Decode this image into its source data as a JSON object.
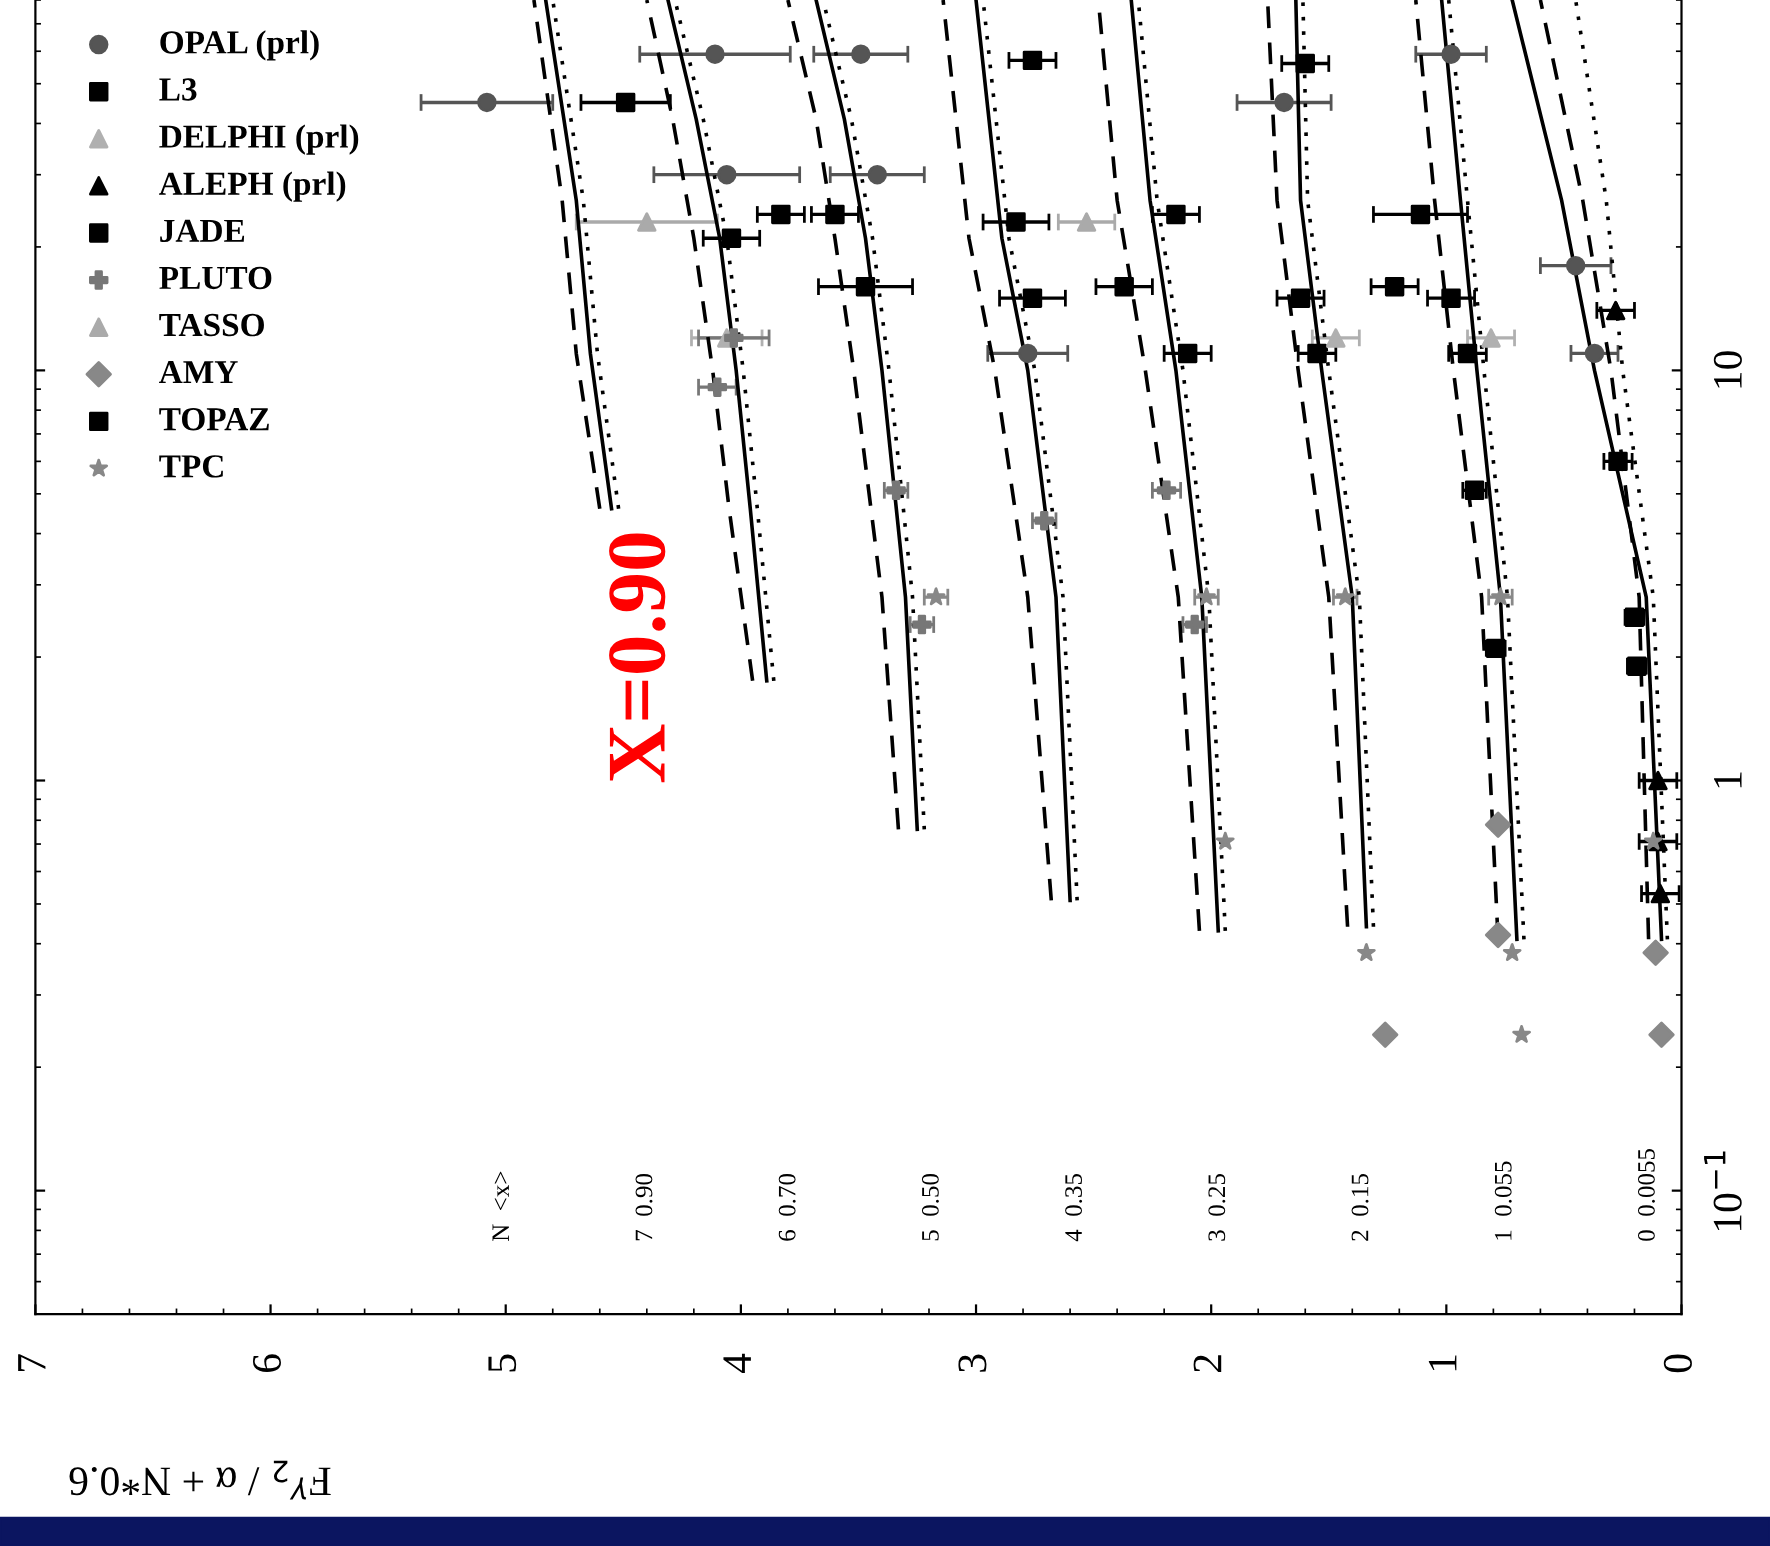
{
  "chart_data": {
    "type": "scatter",
    "xlabel": "F$^{γ}$$_{2}$ / α + N*0.6",
    "xlim": [
      7,
      0
    ],
    "xticks": [
      0,
      1,
      2,
      3,
      4,
      5,
      6,
      7
    ],
    "log": "y",
    "ylim": [
      0.05,
      80
    ],
    "yticks": [
      {
        "value": 0.1,
        "label": "10$^{−1}$"
      },
      {
        "value": 1,
        "label": "1"
      },
      {
        "value": 10,
        "label": "10"
      }
    ],
    "grid": false,
    "legend": "top left",
    "annotations": [
      "X=0.90",
      "N  <x>",
      "7  0.90",
      "6  0.70",
      "5  0.50",
      "4  0.35",
      "3  0.25",
      "2  0.15",
      "1  0.055",
      "0  0.0055"
    ],
    "series": [
      {
        "name": "OPAL (prl)",
        "color": "#555555",
        "marker": "circle",
        "x": [
          5.08,
          4.11,
          4.06,
          3.49,
          3.42,
          2.78,
          1.69,
          0.98,
          0.45,
          0.37
        ],
        "values": [
          45,
          59,
          30,
          59,
          30,
          11,
          45,
          59,
          18,
          11
        ],
        "xerrors": [
          0.28,
          0.32,
          0.31,
          0.2,
          0.2,
          0.17,
          0.2,
          0.15,
          0.15,
          0.1
        ]
      },
      {
        "name": "L3",
        "color": "#000000",
        "marker": "square",
        "x": [
          2.83,
          2.76,
          2.1,
          1.62,
          1.55,
          0.98,
          0.91,
          2.76,
          1.6
        ],
        "values": [
          23,
          15,
          11,
          15,
          11,
          15,
          11,
          57,
          56
        ],
        "xerrors": [
          0.14,
          0.14,
          0.1,
          0.1,
          0.08,
          0.1,
          0.08,
          0.1,
          0.1
        ]
      },
      {
        "name": "DELPHI (prl)",
        "color": "#b0b0b0",
        "marker": "triangle",
        "x": [
          4.06,
          1.47,
          0.81
        ],
        "values": [
          12,
          12,
          12
        ],
        "xerrors": [
          0.15,
          0.1,
          0.1
        ]
      },
      {
        "name": "ALEPH (prl)",
        "color": "#000000",
        "marker": "triangle",
        "x": [
          0.28,
          0.1,
          0.1,
          0.09
        ],
        "values": [
          14,
          1.0,
          0.71,
          0.53
        ],
        "xerrors": [
          0.08,
          0.08,
          0.08,
          0.08
        ]
      },
      {
        "name": "JADE",
        "color": "#000000",
        "marker": "square",
        "x": [
          3.83,
          3.6,
          2.15,
          1.11
        ],
        "values": [
          24,
          24,
          24,
          24
        ],
        "xerrors": [
          0.1,
          0.1,
          0.1,
          0.2
        ]
      },
      {
        "name": "PLUTO",
        "color": "#777777",
        "marker": "cross",
        "x": [
          4.1,
          4.03,
          3.34,
          3.23,
          2.71,
          2.19,
          2.07
        ],
        "values": [
          9.1,
          12,
          5.1,
          2.4,
          4.3,
          5.1,
          2.4
        ],
        "xerrors": [
          0.08,
          0.15,
          0.05,
          0.05,
          0.05,
          0.06,
          0.05
        ]
      },
      {
        "name": "TASSO",
        "color": "#aaaaaa",
        "marker": "triangle",
        "x": [
          4.4,
          2.53
        ],
        "values": [
          23,
          23
        ],
        "xerrors": [
          0.3,
          0.12
        ]
      },
      {
        "name": "AMY",
        "color": "#888888",
        "marker": "diamond",
        "x": [
          1.26,
          0.78,
          0.085,
          0.11,
          0.78
        ],
        "values": [
          0.24,
          0.42,
          0.24,
          0.38,
          0.78
        ]
      },
      {
        "name": "TOPAZ",
        "color": "#000000",
        "marker": "square",
        "x": [
          4.49,
          4.04,
          3.47,
          2.37,
          1.22,
          0.27,
          0.2,
          0.19,
          0.79,
          0.88
        ],
        "values": [
          45,
          21,
          16,
          16,
          16,
          6.0,
          2.5,
          1.9,
          2.1,
          5.1
        ],
        "xerrors": [
          0.19,
          0.12,
          0.2,
          0.12,
          0.1,
          0.06,
          0.04,
          0.04,
          0.04,
          0.05
        ]
      },
      {
        "name": "TPC",
        "color": "#888888",
        "marker": "star",
        "x": [
          3.17,
          2.02,
          1.43,
          0.77,
          0.68,
          1.34,
          0.72,
          1.94,
          0.12
        ],
        "values": [
          2.8,
          2.8,
          2.8,
          2.8,
          0.24,
          0.38,
          0.38,
          0.71,
          0.71
        ],
        "xerrors": [
          0.05,
          0.05,
          0.05,
          0.05,
          null,
          null,
          null,
          null,
          null
        ]
      },
      {
        "type": "line",
        "color": "#000000",
        "line_style": "solid",
        "x": [
          4.55,
          4.64,
          4.7,
          4.83
        ],
        "values": [
          4.6,
          11,
          26,
          80
        ]
      },
      {
        "type": "line",
        "color": "#000000",
        "line_style": "solid",
        "x": [
          3.89,
          3.96,
          4.02,
          4.09,
          4.19,
          4.31
        ],
        "values": [
          1.75,
          4.6,
          10,
          21,
          41,
          80
        ]
      },
      {
        "type": "line",
        "color": "#000000",
        "line_style": "solid",
        "x": [
          3.25,
          3.3,
          3.4,
          3.47,
          3.56,
          3.68
        ],
        "values": [
          0.76,
          2.8,
          10,
          21,
          41,
          80
        ]
      },
      {
        "type": "line",
        "color": "#000000",
        "line_style": "solid",
        "x": [
          2.6,
          2.66,
          2.78,
          2.89,
          3.0
        ],
        "values": [
          0.51,
          2.8,
          10,
          21,
          80
        ]
      },
      {
        "type": "line",
        "color": "#000000",
        "line_style": "solid",
        "x": [
          1.97,
          2.04,
          2.15,
          2.26,
          2.34
        ],
        "values": [
          0.43,
          2.8,
          10,
          26,
          80
        ]
      },
      {
        "type": "line",
        "color": "#000000",
        "line_style": "solid",
        "x": [
          1.34,
          1.4,
          1.53,
          1.62,
          1.64
        ],
        "values": [
          0.44,
          2.8,
          10,
          26,
          80
        ]
      },
      {
        "type": "line",
        "color": "#000000",
        "line_style": "solid",
        "x": [
          0.7,
          0.77,
          0.87,
          0.94,
          1.02
        ],
        "values": [
          0.41,
          2.8,
          10,
          26,
          80
        ]
      },
      {
        "type": "line",
        "color": "#000000",
        "line_style": "solid",
        "x": [
          0.085,
          0.15,
          0.37,
          0.51,
          0.72
        ],
        "values": [
          0.41,
          2.8,
          10,
          26,
          80
        ]
      },
      {
        "type": "line",
        "color": "#000000",
        "line_style": "dashed",
        "x": [
          4.6,
          4.7,
          4.76,
          4.88
        ],
        "values": [
          4.6,
          11,
          26,
          80
        ]
      },
      {
        "type": "line",
        "color": "#000000",
        "line_style": "dashed",
        "x": [
          3.95,
          4.05,
          4.12,
          4.2,
          4.29,
          4.4
        ],
        "values": [
          1.75,
          4.6,
          10,
          21,
          41,
          80
        ]
      },
      {
        "type": "line",
        "color": "#000000",
        "line_style": "dashed",
        "x": [
          3.33,
          3.4,
          3.52,
          3.6,
          3.68,
          3.8
        ],
        "values": [
          0.76,
          2.8,
          10,
          21,
          41,
          80
        ]
      },
      {
        "type": "line",
        "color": "#000000",
        "line_style": "dashed",
        "x": [
          2.68,
          2.78,
          2.92,
          3.03,
          3.14
        ],
        "values": [
          0.51,
          2.8,
          10,
          21,
          80
        ]
      },
      {
        "type": "line",
        "color": "#000000",
        "line_style": "dashed",
        "x": [
          2.05,
          2.14,
          2.28,
          2.4,
          2.48
        ],
        "values": [
          0.43,
          2.8,
          10,
          26,
          80
        ]
      },
      {
        "type": "line",
        "color": "#000000",
        "line_style": "dashed",
        "x": [
          1.42,
          1.5,
          1.63,
          1.72,
          1.76
        ],
        "values": [
          0.44,
          2.8,
          10,
          26,
          80
        ]
      },
      {
        "type": "line",
        "color": "#000000",
        "line_style": "dashed",
        "x": [
          0.78,
          0.85,
          0.97,
          1.05,
          1.13
        ],
        "values": [
          0.41,
          2.8,
          10,
          26,
          80
        ]
      },
      {
        "type": "line",
        "color": "#000000",
        "line_style": "dashed",
        "x": [
          0.14,
          0.18,
          0.3,
          0.42,
          0.6
        ],
        "values": [
          0.41,
          2.8,
          10,
          26,
          80
        ]
      },
      {
        "type": "line",
        "color": "#000000",
        "line_style": "dotted",
        "x": [
          4.52,
          4.61,
          4.67,
          4.8
        ],
        "values": [
          4.6,
          11,
          26,
          80
        ]
      },
      {
        "type": "line",
        "color": "#000000",
        "line_style": "dotted",
        "x": [
          3.86,
          3.93,
          3.99,
          4.06,
          4.16,
          4.28
        ],
        "values": [
          1.75,
          4.6,
          10,
          21,
          41,
          80
        ]
      },
      {
        "type": "line",
        "color": "#000000",
        "line_style": "dotted",
        "x": [
          3.22,
          3.27,
          3.37,
          3.44,
          3.53,
          3.65
        ],
        "values": [
          0.76,
          2.8,
          10,
          21,
          41,
          80
        ]
      },
      {
        "type": "line",
        "color": "#000000",
        "line_style": "dotted",
        "x": [
          2.57,
          2.63,
          2.75,
          2.86,
          2.97
        ],
        "values": [
          0.51,
          2.8,
          10,
          21,
          80
        ]
      },
      {
        "type": "line",
        "color": "#000000",
        "line_style": "dotted",
        "x": [
          1.94,
          2.01,
          2.12,
          2.23,
          2.31
        ],
        "values": [
          0.43,
          2.8,
          10,
          26,
          80
        ]
      },
      {
        "type": "line",
        "color": "#000000",
        "line_style": "dotted",
        "x": [
          1.31,
          1.37,
          1.5,
          1.59,
          1.61
        ],
        "values": [
          0.44,
          2.8,
          10,
          26,
          80
        ]
      },
      {
        "type": "line",
        "color": "#000000",
        "line_style": "dotted",
        "x": [
          0.67,
          0.74,
          0.84,
          0.91,
          0.99
        ],
        "values": [
          0.41,
          2.8,
          10,
          26,
          80
        ]
      },
      {
        "type": "line",
        "color": "#000000",
        "line_style": "dotted",
        "x": [
          0.06,
          0.12,
          0.25,
          0.32,
          0.45
        ],
        "values": [
          0.41,
          2.8,
          10,
          26,
          80
        ]
      }
    ]
  }
}
